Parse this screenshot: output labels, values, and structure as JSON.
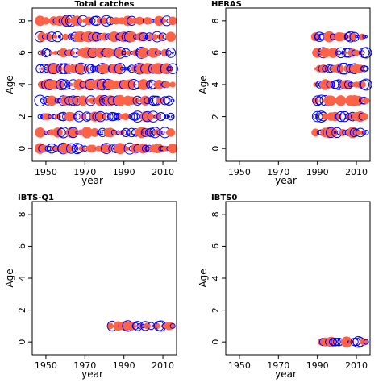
{
  "colors": {
    "observed": "#ff6347",
    "predicted": "#0000ff",
    "axis": "#000000",
    "background": "#ffffff"
  },
  "chart_data": [
    {
      "type": "scatter",
      "title": "Total catches",
      "xlabel": "year",
      "ylabel": "Age",
      "xlim": [
        1943,
        2017
      ],
      "ylim": [
        -0.8,
        8.8
      ],
      "xticks": [
        1950,
        1970,
        1990,
        2010
      ],
      "xtick_labels": [
        "1950",
        "1970",
        "1990",
        "2010"
      ],
      "yticks": [
        0,
        2,
        4,
        6,
        8
      ],
      "ytick_labels": [
        "0",
        "2",
        "4",
        "6",
        "8"
      ],
      "years": [
        1947,
        2015
      ],
      "ages": [
        0,
        8
      ],
      "series": []
    },
    {
      "type": "scatter",
      "title": "HERAS",
      "xlabel": "year",
      "ylabel": "Age",
      "xlim": [
        1943,
        2017
      ],
      "ylim": [
        -0.8,
        8.8
      ],
      "xticks": [
        1950,
        1970,
        1990,
        2010
      ],
      "xtick_labels": [
        "1950",
        "1970",
        "1990",
        "2010"
      ],
      "yticks": [
        0,
        2,
        4,
        6,
        8
      ],
      "ytick_labels": [
        "0",
        "2",
        "4",
        "6",
        "8"
      ],
      "years": [
        1989,
        2015
      ],
      "ages": [
        1,
        7
      ],
      "series": []
    },
    {
      "type": "scatter",
      "title": "IBTS-Q1",
      "xlabel": "year",
      "ylabel": "Age",
      "xlim": [
        1943,
        2017
      ],
      "ylim": [
        -0.8,
        8.8
      ],
      "xticks": [
        1950,
        1970,
        1990,
        2010
      ],
      "xtick_labels": [
        "1950",
        "1970",
        "1990",
        "2010"
      ],
      "yticks": [
        0,
        2,
        4,
        6,
        8
      ],
      "ytick_labels": [
        "0",
        "2",
        "4",
        "6",
        "8"
      ],
      "years": [
        1983,
        2015
      ],
      "ages": [
        1,
        1
      ],
      "series": []
    },
    {
      "type": "scatter",
      "title": "IBTS0",
      "xlabel": "year",
      "ylabel": "Age",
      "xlim": [
        1943,
        2017
      ],
      "ylim": [
        -0.8,
        8.8
      ],
      "xticks": [
        1950,
        1970,
        1990,
        2010
      ],
      "xtick_labels": [
        "1950",
        "1970",
        "1990",
        "2010"
      ],
      "yticks": [
        0,
        2,
        4,
        6,
        8
      ],
      "ytick_labels": [
        "0",
        "2",
        "4",
        "6",
        "8"
      ],
      "years": [
        1992,
        2015
      ],
      "ages": [
        0,
        0
      ],
      "series": []
    }
  ]
}
